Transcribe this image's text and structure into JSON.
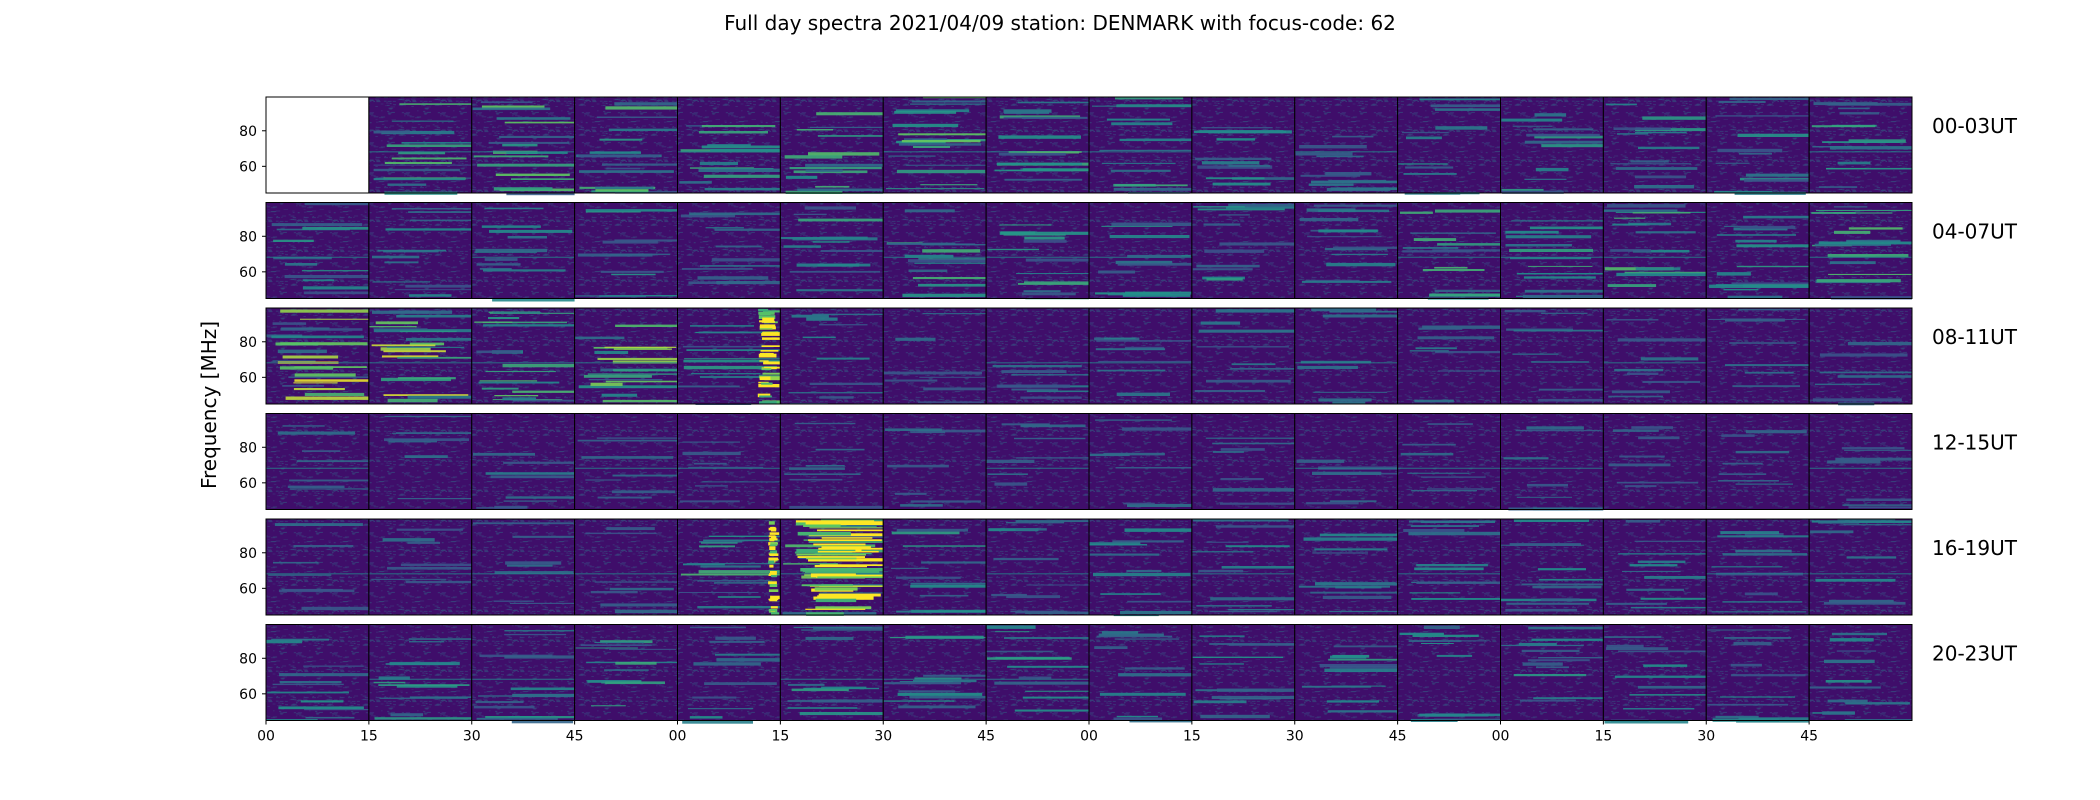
{
  "chart_data": {
    "type": "heatmap",
    "title": "Full day spectra 2021/04/09 station: DENMARK with focus-code: 62",
    "ylabel": "Frequency [MHz]",
    "xlabel": "",
    "ylim": [
      45,
      99
    ],
    "y_ticks": [
      "80",
      "60"
    ],
    "y_tick_values": [
      80,
      60
    ],
    "x_ticks": [
      "00",
      "15",
      "30",
      "45",
      "00",
      "15",
      "30",
      "45",
      "00",
      "15",
      "30",
      "45",
      "00",
      "15",
      "30",
      "45"
    ],
    "rows": [
      {
        "label": "00-03UT",
        "empty_panels": [
          0
        ]
      },
      {
        "label": "04-07UT",
        "empty_panels": []
      },
      {
        "label": "08-11UT",
        "empty_panels": []
      },
      {
        "label": "12-15UT",
        "empty_panels": []
      },
      {
        "label": "16-19UT",
        "empty_panels": []
      },
      {
        "label": "20-23UT",
        "empty_panels": []
      }
    ],
    "panels_per_row": 16,
    "panel_duration_minutes": 15,
    "colormap": [
      "#440154",
      "#3b528b",
      "#21918c",
      "#5ec962",
      "#fde725"
    ],
    "background_color": "#3f0e6a",
    "activity_level": [
      [
        0.0,
        0.55,
        0.6,
        0.55,
        0.45,
        0.5,
        0.65,
        0.6,
        0.45,
        0.35,
        0.3,
        0.3,
        0.35,
        0.35,
        0.35,
        0.45
      ],
      [
        0.35,
        0.35,
        0.3,
        0.35,
        0.3,
        0.4,
        0.45,
        0.45,
        0.4,
        0.35,
        0.4,
        0.45,
        0.45,
        0.5,
        0.5,
        0.6
      ],
      [
        0.85,
        0.8,
        0.7,
        0.7,
        0.35,
        0.25,
        0.15,
        0.2,
        0.2,
        0.2,
        0.2,
        0.2,
        0.2,
        0.2,
        0.15,
        0.15
      ],
      [
        0.15,
        0.15,
        0.2,
        0.15,
        0.15,
        0.15,
        0.15,
        0.15,
        0.15,
        0.15,
        0.15,
        0.15,
        0.15,
        0.15,
        0.15,
        0.15
      ],
      [
        0.15,
        0.15,
        0.15,
        0.15,
        0.5,
        0.8,
        0.35,
        0.3,
        0.3,
        0.3,
        0.3,
        0.3,
        0.3,
        0.3,
        0.25,
        0.25
      ],
      [
        0.35,
        0.35,
        0.4,
        0.4,
        0.3,
        0.35,
        0.35,
        0.35,
        0.3,
        0.3,
        0.35,
        0.35,
        0.35,
        0.3,
        0.3,
        0.3
      ]
    ],
    "bursts": [
      {
        "row": 2,
        "panel": 4,
        "position": 0.78,
        "width": 0.22,
        "color": "#fde725"
      },
      {
        "row": 4,
        "panel": 4,
        "position": 0.88,
        "width": 0.1,
        "color": "#fde725"
      },
      {
        "row": 4,
        "panel": 5,
        "position": 0.15,
        "width": 0.85,
        "color": "#fde725"
      }
    ]
  }
}
